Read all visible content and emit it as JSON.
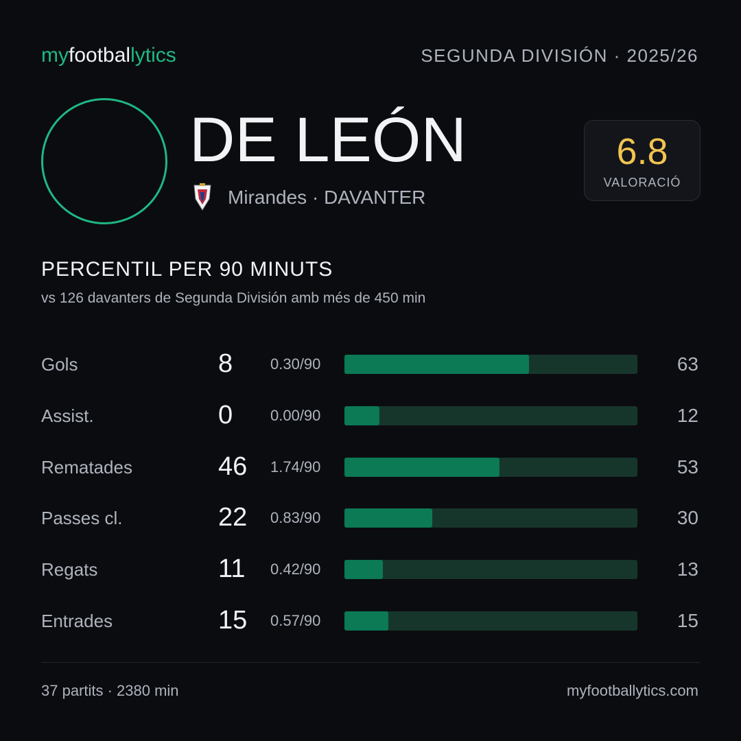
{
  "header": {
    "brand": [
      "my",
      "footbal",
      "lytics"
    ],
    "league": "SEGUNDA DIVISIÓN · 2025/26"
  },
  "player": {
    "name": "DE LEÓN",
    "team": "Mirandes",
    "position": "DAVANTER",
    "rating": 6.8,
    "rating_label": "VALORACIÓ"
  },
  "section": {
    "title": "PERCENTIL PER 90 MINUTS",
    "subtitle": "vs 126 davanters de Segunda División amb més de 450 min",
    "percentile_range": [
      0,
      100
    ]
  },
  "stats": [
    {
      "label": "Gols",
      "total": "8",
      "per90": "0.30/90",
      "percentile": 63
    },
    {
      "label": "Assist.",
      "total": "0",
      "per90": "0.00/90",
      "percentile": 12
    },
    {
      "label": "Rematades",
      "total": "46",
      "per90": "1.74/90",
      "percentile": 53
    },
    {
      "label": "Passes cl.",
      "total": "22",
      "per90": "0.83/90",
      "percentile": 30
    },
    {
      "label": "Regats",
      "total": "11",
      "per90": "0.42/90",
      "percentile": 13
    },
    {
      "label": "Entrades",
      "total": "15",
      "per90": "0.57/90",
      "percentile": 15
    }
  ],
  "footer": {
    "summary": "37 partits · 2380 min",
    "site": "myfootballytics.com"
  }
}
